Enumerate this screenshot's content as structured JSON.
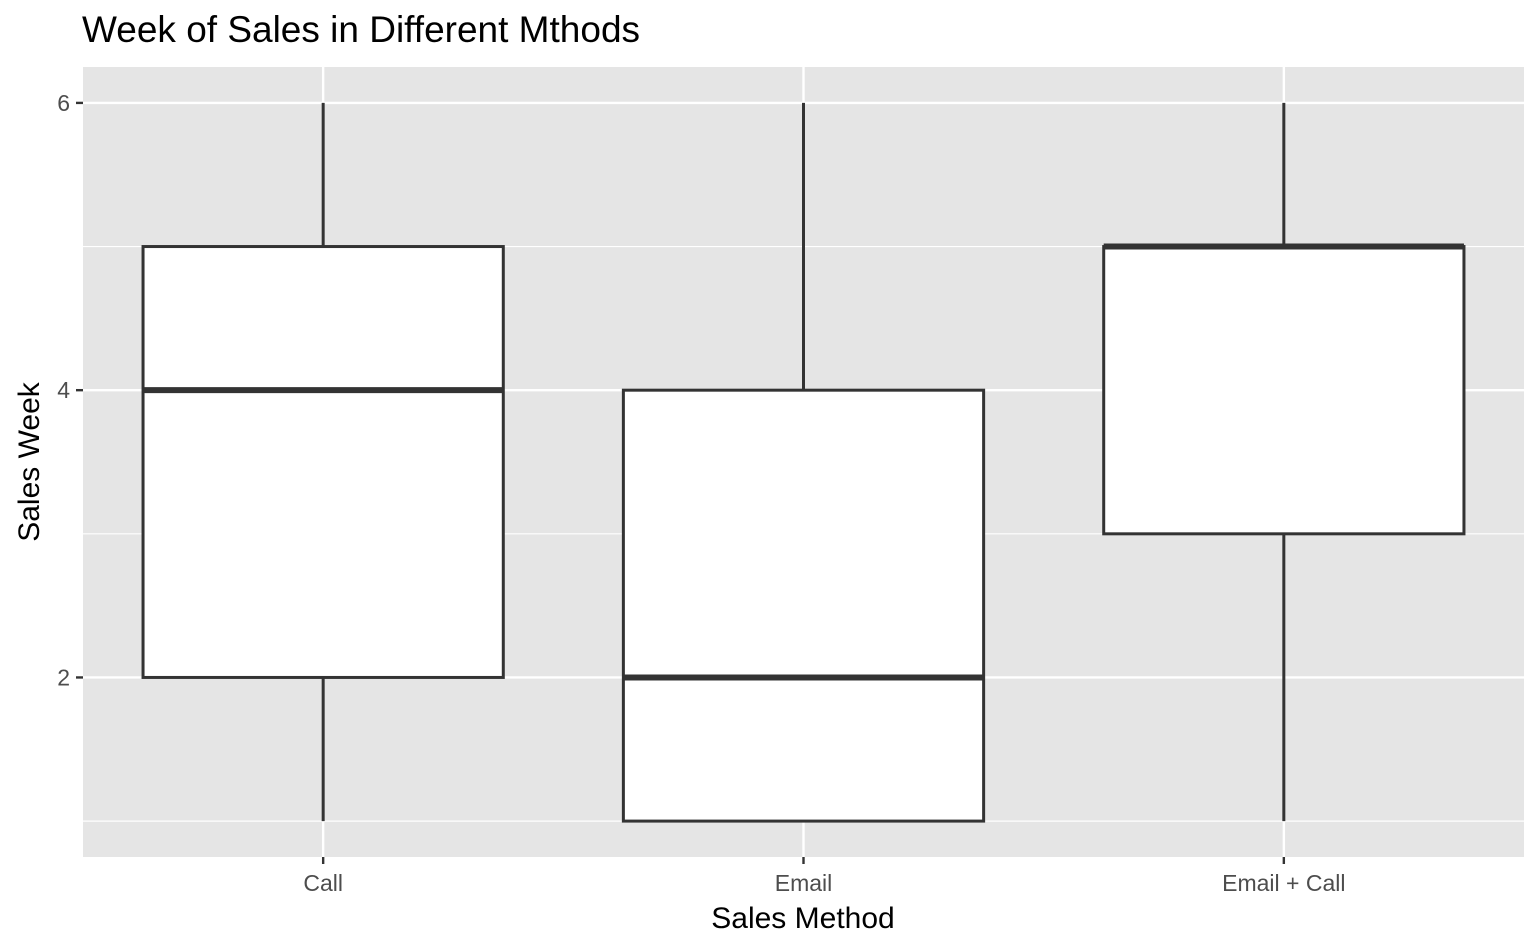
{
  "chart_data": {
    "type": "boxplot",
    "title": "Week of Sales in Different Mthods",
    "xlabel": "Sales Method",
    "ylabel": "Sales Week",
    "ylim": [
      0.75,
      6.25
    ],
    "yticks": [
      2,
      4,
      6
    ],
    "grid": true,
    "categories": [
      "Call",
      "Email",
      "Email + Call"
    ],
    "boxes": [
      {
        "category": "Call",
        "min": 1,
        "q1": 2,
        "median": 4,
        "q3": 5,
        "max": 6
      },
      {
        "category": "Email",
        "min": 1,
        "q1": 1,
        "median": 2,
        "q3": 4,
        "max": 6
      },
      {
        "category": "Email + Call",
        "min": 1,
        "q1": 3,
        "median": 5,
        "q3": 5,
        "max": 6
      }
    ],
    "colors": {
      "panel_background": "#e5e5e5",
      "grid": "#ffffff",
      "box_fill": "#ffffff",
      "box_outline": "#333333",
      "tick_text": "#4d4d4d"
    }
  }
}
